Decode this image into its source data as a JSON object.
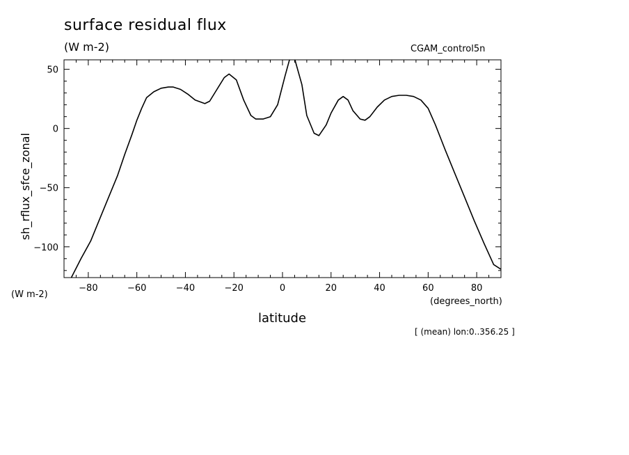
{
  "header": {
    "title": "surface residual flux",
    "title_units": "(W m-2)",
    "run_name": "CGAM_control5n"
  },
  "footnote": "[ (mean) lon:0..356.25 ]",
  "chart_data": {
    "type": "line",
    "title": "surface residual flux",
    "xlabel": "latitude",
    "xunits": "(degrees_north)",
    "ylabel": "sh_rflux_sfce_zonal",
    "yunits": "(W m-2)",
    "xlim": [
      -90,
      90
    ],
    "ylim": [
      -126,
      58
    ],
    "xticks": [
      -80,
      -60,
      -40,
      -20,
      0,
      20,
      40,
      60,
      80
    ],
    "yticks": [
      -100,
      -50,
      0,
      50
    ],
    "grid": false,
    "color": "#000000",
    "series": [
      {
        "x": [
          -87,
          -83,
          -79,
          -76,
          -72,
          -68,
          -65,
          -62,
          -60,
          -58,
          -56,
          -53,
          -50,
          -47,
          -45,
          -42,
          -39,
          -36,
          -32,
          -30,
          -27,
          -24,
          -22,
          -19,
          -16,
          -13,
          -11,
          -8,
          -5,
          -2,
          1,
          3,
          5,
          8,
          10,
          13,
          15,
          18,
          20,
          23,
          25,
          27,
          29,
          32,
          34,
          36,
          39,
          42,
          45,
          48,
          51,
          54,
          57,
          60,
          63,
          67,
          71,
          75,
          79,
          83,
          87,
          90
        ],
        "y": [
          -126,
          -110,
          -95,
          -80,
          -60,
          -40,
          -22,
          -5,
          7,
          17,
          26,
          31,
          34,
          35,
          35,
          33,
          29,
          24,
          21,
          23,
          33,
          43,
          46,
          41,
          24,
          11,
          8,
          8,
          10,
          20,
          44,
          59,
          59,
          37,
          11,
          -4,
          -6,
          3,
          13,
          24,
          27,
          24,
          15,
          8,
          7,
          10,
          18,
          24,
          27,
          28,
          28,
          27,
          24,
          17,
          3,
          -18,
          -38,
          -58,
          -78,
          -97,
          -115,
          -119
        ]
      }
    ]
  }
}
